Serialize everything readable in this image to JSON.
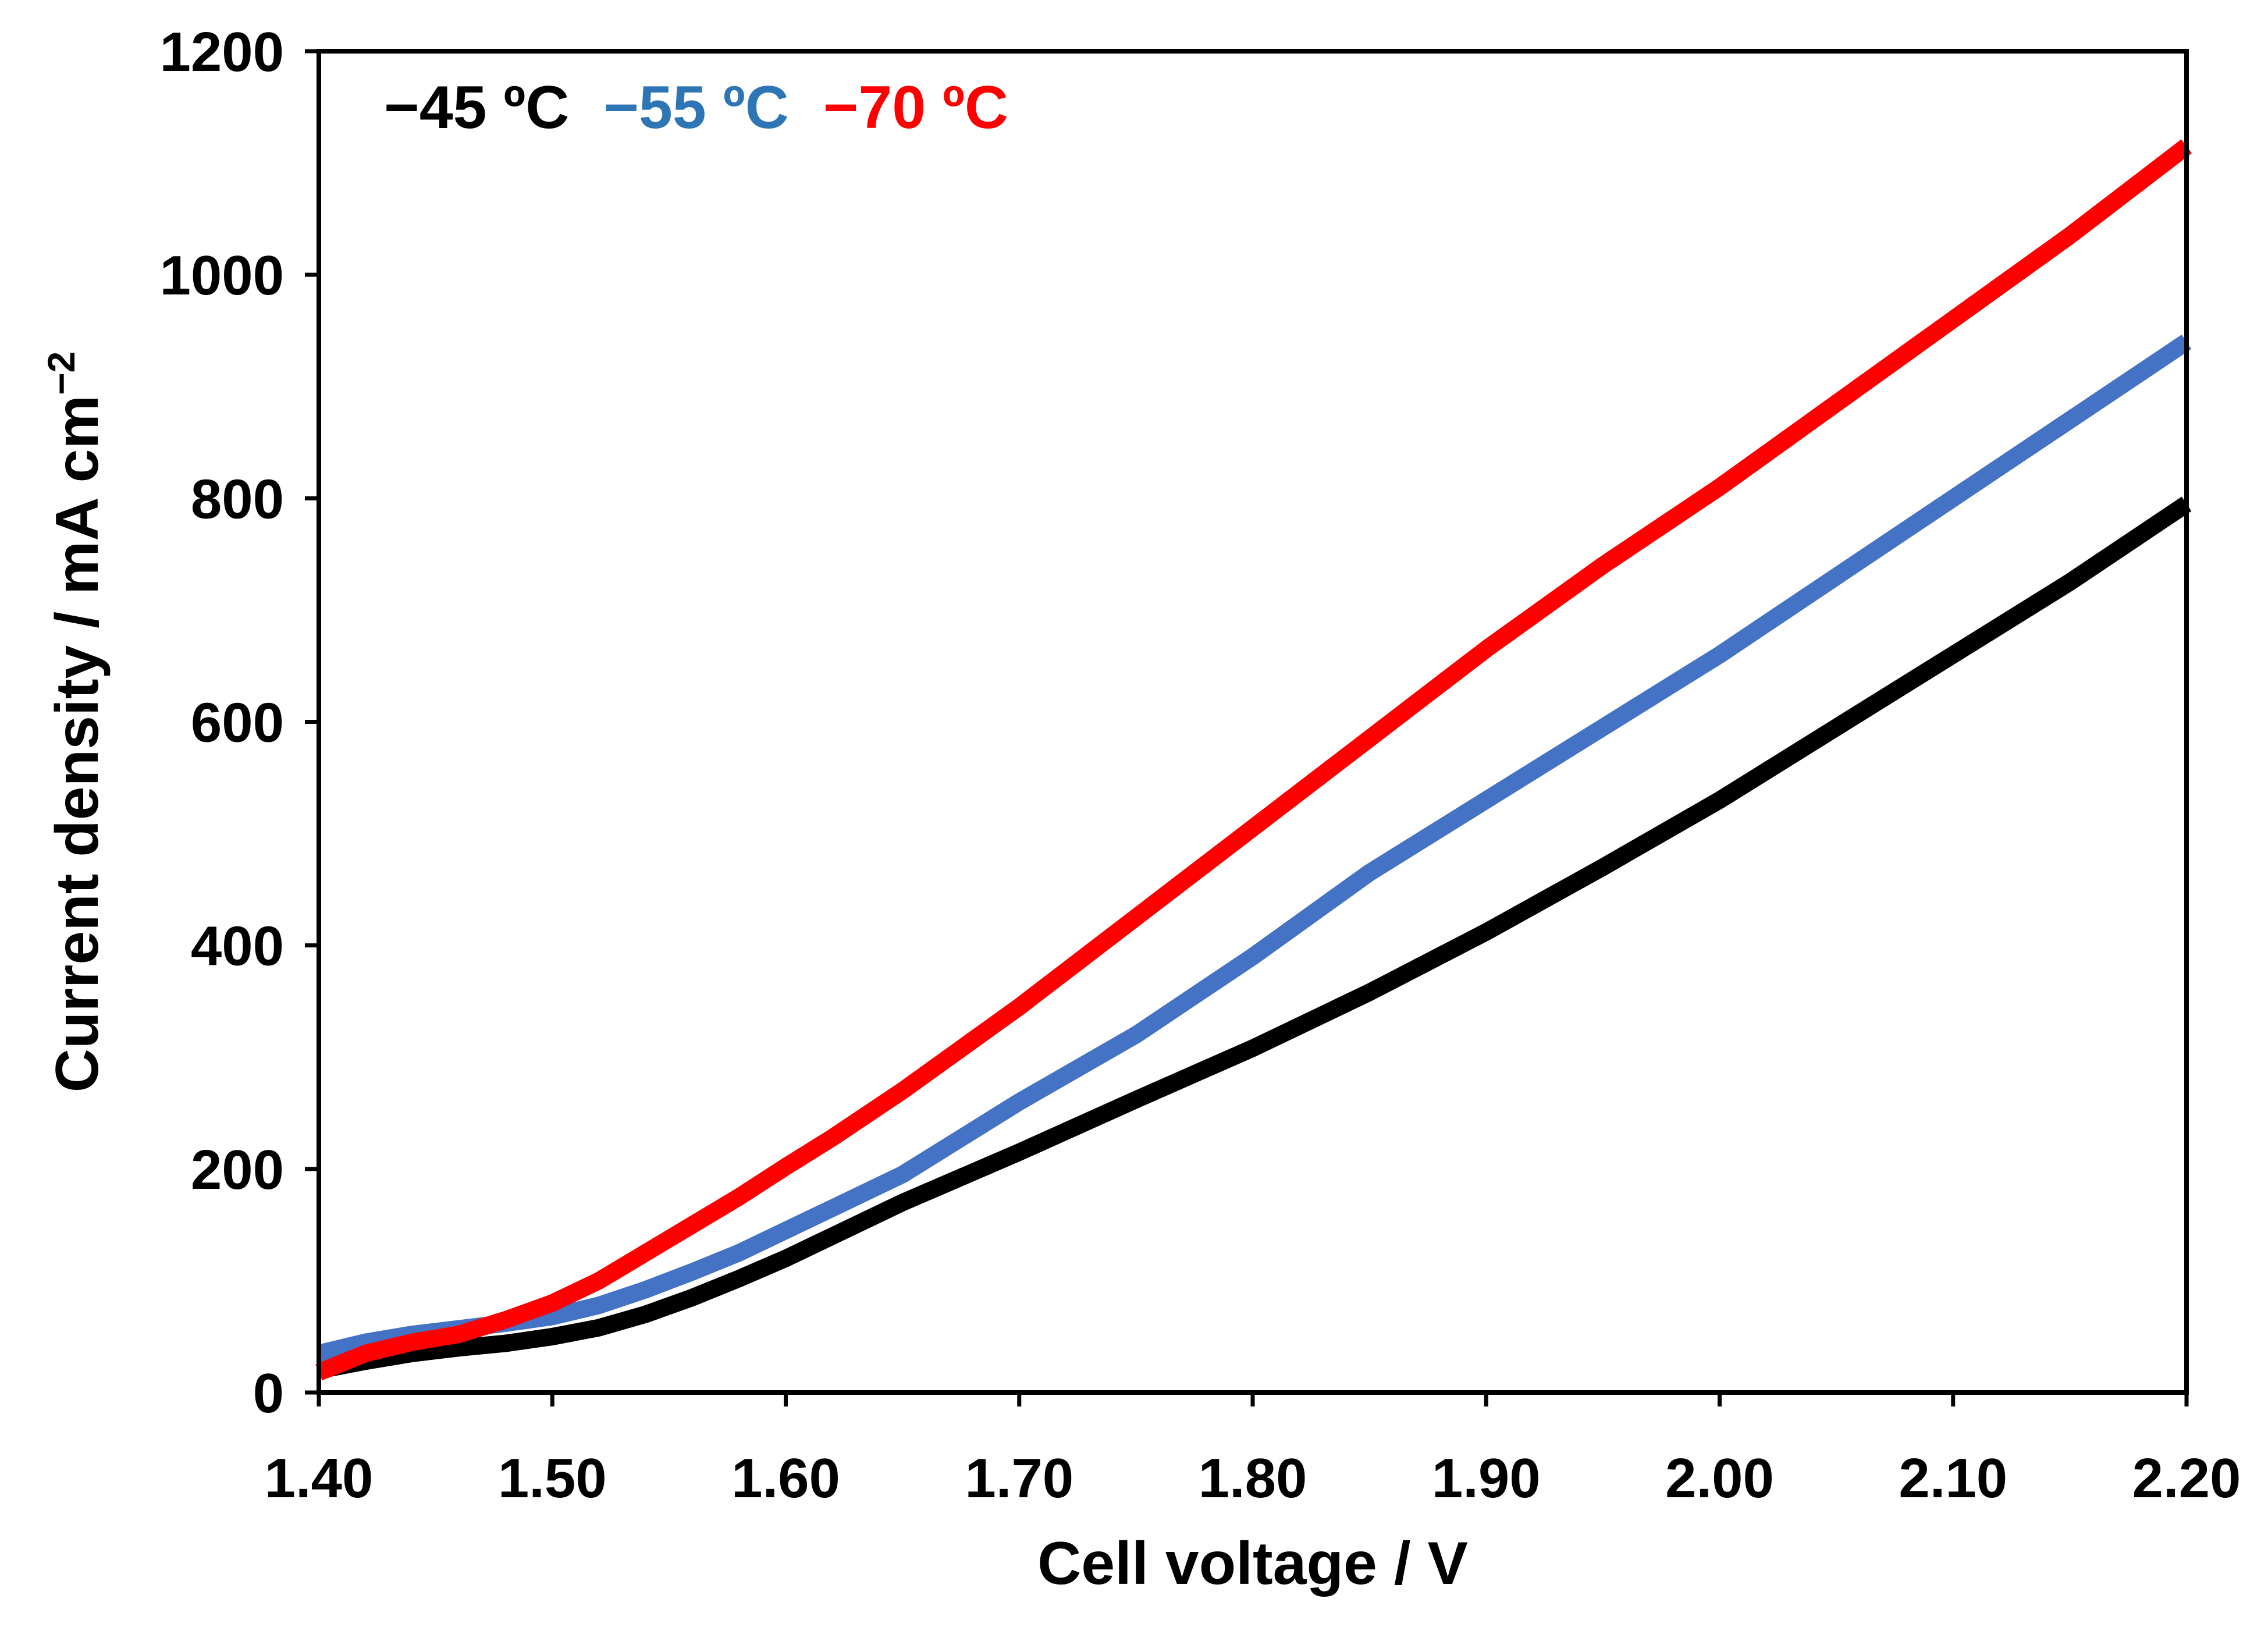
{
  "chart_data": {
    "type": "line",
    "title": "",
    "xlabel": "Cell voltage / V",
    "ylabel_main": "Current density / mA cm",
    "ylabel_sup": "−2",
    "xlim": [
      1.4,
      2.2
    ],
    "ylim": [
      0,
      1200
    ],
    "x_ticks": [
      "1.40",
      "1.50",
      "1.60",
      "1.70",
      "1.80",
      "1.90",
      "2.00",
      "2.10",
      "2.20"
    ],
    "y_ticks": [
      "0",
      "200",
      "400",
      "600",
      "800",
      "1000",
      "1200"
    ],
    "grid": false,
    "legend_position": "top-left",
    "series": [
      {
        "name": "−45 ºC",
        "color": "#000000",
        "x": [
          1.4,
          1.42,
          1.44,
          1.46,
          1.48,
          1.5,
          1.52,
          1.54,
          1.56,
          1.58,
          1.6,
          1.62,
          1.65,
          1.7,
          1.75,
          1.8,
          1.85,
          1.9,
          1.95,
          2.0,
          2.05,
          2.1,
          2.15,
          2.2
        ],
        "y": [
          20,
          28,
          35,
          40,
          44,
          50,
          58,
          70,
          85,
          102,
          120,
          140,
          170,
          215,
          262,
          308,
          358,
          412,
          470,
          530,
          595,
          660,
          725,
          795
        ]
      },
      {
        "name": "−55 ºC",
        "color": "#4472c4",
        "x": [
          1.4,
          1.42,
          1.44,
          1.46,
          1.48,
          1.5,
          1.52,
          1.54,
          1.56,
          1.58,
          1.6,
          1.62,
          1.65,
          1.7,
          1.75,
          1.8,
          1.85,
          1.9,
          1.95,
          2.0,
          2.05,
          2.1,
          2.15,
          2.2
        ],
        "y": [
          35,
          45,
          52,
          57,
          62,
          68,
          78,
          92,
          108,
          125,
          145,
          165,
          195,
          260,
          320,
          390,
          465,
          530,
          595,
          660,
          730,
          800,
          870,
          940
        ]
      },
      {
        "name": "−70 ºC",
        "color": "#ff0000",
        "x": [
          1.4,
          1.42,
          1.44,
          1.46,
          1.48,
          1.5,
          1.52,
          1.54,
          1.56,
          1.58,
          1.6,
          1.62,
          1.65,
          1.7,
          1.75,
          1.8,
          1.85,
          1.9,
          1.95,
          2.0,
          2.05,
          2.1,
          2.15,
          2.2
        ],
        "y": [
          18,
          35,
          45,
          52,
          65,
          80,
          100,
          125,
          150,
          175,
          202,
          228,
          270,
          345,
          425,
          505,
          585,
          665,
          740,
          810,
          885,
          960,
          1035,
          1115
        ]
      }
    ]
  }
}
